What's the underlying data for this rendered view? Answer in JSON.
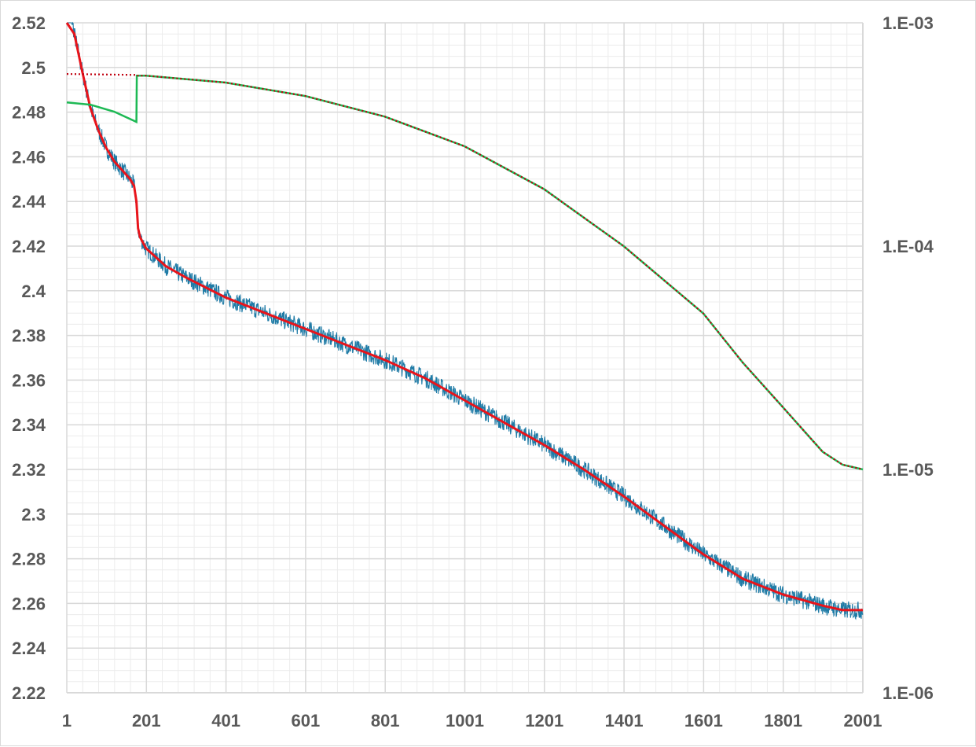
{
  "chart_data": {
    "type": "line",
    "title": "",
    "xlabel": "",
    "ylabel": "",
    "y2label": "",
    "grid": true,
    "legend": "none",
    "x_range": [
      1,
      2001
    ],
    "x_ticks": [
      "1",
      "201",
      "401",
      "601",
      "801",
      "1001",
      "1201",
      "1401",
      "1601",
      "1801",
      "2001"
    ],
    "y_range": [
      2.22,
      2.52
    ],
    "y_ticks": [
      "2.52",
      "2.5",
      "2.48",
      "2.46",
      "2.44",
      "2.42",
      "2.4",
      "2.38",
      "2.36",
      "2.34",
      "2.32",
      "2.3",
      "2.28",
      "2.26",
      "2.24",
      "2.22"
    ],
    "y2_scale": "log",
    "y2_range": [
      1e-06,
      0.001
    ],
    "y2_ticks": [
      "1.E-03",
      "1.E-04",
      "1.E-05",
      "1.E-06"
    ],
    "colors": {
      "loss_raw": "#1f7ba6",
      "loss_smoothed": "#e8141b",
      "lr_actual": "#1db954",
      "lr_schedule": "#c0000f",
      "gridline": "#d9d9d9",
      "tick_text": "#595959"
    },
    "series": [
      {
        "axis": "left",
        "style": "solid-thin-noisy",
        "color_key": "loss_raw",
        "noise_amplitude": 0.004,
        "x": [
          1,
          20,
          40,
          60,
          80,
          100,
          120,
          140,
          160,
          170,
          176,
          180,
          185,
          200,
          250,
          300,
          400,
          500,
          600,
          700,
          800,
          900,
          1000,
          1100,
          1200,
          1300,
          1400,
          1500,
          1600,
          1700,
          1800,
          1900,
          1950,
          2001
        ],
        "values": [
          2.535,
          2.515,
          2.498,
          2.482,
          2.472,
          2.464,
          2.458,
          2.454,
          2.45,
          2.447,
          2.44,
          2.428,
          2.424,
          2.419,
          2.411,
          2.406,
          2.397,
          2.39,
          2.383,
          2.376,
          2.369,
          2.361,
          2.351,
          2.341,
          2.331,
          2.32,
          2.308,
          2.295,
          2.282,
          2.271,
          2.264,
          2.259,
          2.257,
          2.257
        ]
      },
      {
        "axis": "left",
        "style": "solid-thick",
        "color_key": "loss_smoothed",
        "x": [
          1,
          20,
          40,
          60,
          80,
          100,
          120,
          140,
          160,
          170,
          176,
          180,
          185,
          200,
          250,
          300,
          400,
          500,
          600,
          700,
          800,
          900,
          1000,
          1100,
          1200,
          1300,
          1400,
          1500,
          1600,
          1700,
          1800,
          1900,
          1950,
          2001
        ],
        "values": [
          2.535,
          2.515,
          2.498,
          2.482,
          2.472,
          2.464,
          2.458,
          2.454,
          2.45,
          2.447,
          2.44,
          2.428,
          2.424,
          2.419,
          2.411,
          2.406,
          2.397,
          2.39,
          2.383,
          2.376,
          2.369,
          2.361,
          2.351,
          2.341,
          2.331,
          2.32,
          2.308,
          2.295,
          2.282,
          2.271,
          2.264,
          2.259,
          2.257,
          2.257
        ]
      },
      {
        "axis": "right",
        "style": "solid",
        "color_key": "lr_actual",
        "x": [
          1,
          60,
          120,
          176,
          177,
          200,
          400,
          600,
          800,
          1000,
          1200,
          1400,
          1600,
          1700,
          1800,
          1900,
          1950,
          2001
        ],
        "values": [
          0.00044,
          0.00043,
          0.0004,
          0.00036,
          0.00058,
          0.00058,
          0.00054,
          0.00047,
          0.00038,
          0.00028,
          0.00018,
          0.0001,
          5e-05,
          3e-05,
          1.9e-05,
          1.2e-05,
          1.05e-05,
          1e-05
        ]
      },
      {
        "axis": "right",
        "style": "dotted",
        "color_key": "lr_schedule",
        "x": [
          1,
          60,
          120,
          176,
          177,
          200,
          400,
          600,
          800,
          1000,
          1200,
          1400,
          1600,
          1700,
          1800,
          1900,
          1950,
          2001
        ],
        "values": [
          0.00059,
          0.000588,
          0.000586,
          0.000584,
          0.00058,
          0.00058,
          0.00054,
          0.00047,
          0.00038,
          0.00028,
          0.00018,
          0.0001,
          5e-05,
          3e-05,
          1.9e-05,
          1.2e-05,
          1.05e-05,
          1e-05
        ]
      }
    ]
  }
}
